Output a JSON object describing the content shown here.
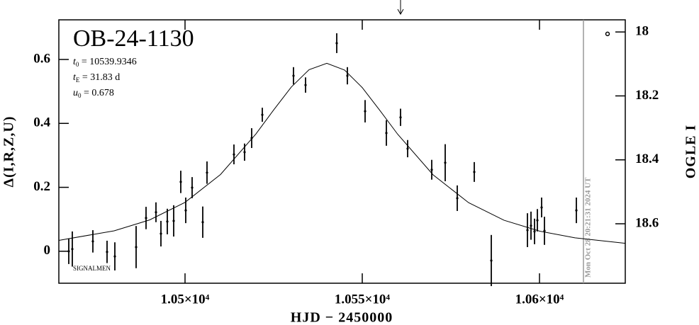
{
  "chart_data": {
    "type": "errorbar",
    "title": "OB-24-1130",
    "params": [
      {
        "symbol": "t",
        "sub": "0",
        "text": " = 10539.9346"
      },
      {
        "symbol": "t",
        "sub": "E",
        "text": " = 31.83 d"
      },
      {
        "symbol": "u",
        "sub": "0",
        "text": " = 0.678"
      }
    ],
    "footnote": "SIGNALMEN",
    "xlabel": "HJD − 2450000",
    "ylabel": "Δ(I,R,Z,U)",
    "y2label": "OGLE I",
    "color": "#000000",
    "x": [
      10467.2,
      10468.2,
      10474.0,
      10478.0,
      10480.2,
      10486.2,
      10489.0,
      10491.8,
      10493.2,
      10495.0,
      10496.8,
      10498.8,
      10500.2,
      10502.0,
      10505.0,
      10506.2,
      10513.8,
      10516.8,
      10518.8,
      10521.8,
      10530.6,
      10534.0,
      10542.8,
      10545.8,
      10550.8,
      10556.8,
      10560.8,
      10562.8,
      10569.6,
      10573.4,
      10576.8,
      10581.6,
      10586.4,
      10596.6,
      10597.6,
      10598.6,
      10599.4,
      10600.6,
      10601.4,
      10610.4
    ],
    "values": [
      0.0,
      0.007,
      0.031,
      -0.002,
      -0.016,
      0.013,
      0.104,
      0.122,
      0.055,
      0.093,
      0.095,
      0.217,
      0.128,
      0.199,
      0.091,
      0.246,
      0.303,
      0.31,
      0.354,
      0.427,
      0.549,
      0.52,
      0.651,
      0.549,
      0.438,
      0.37,
      0.419,
      0.321,
      0.255,
      0.277,
      0.166,
      0.248,
      -0.029,
      0.066,
      0.08,
      0.062,
      0.097,
      0.137,
      0.064,
      0.128
    ],
    "errors": [
      0.04,
      0.055,
      0.035,
      0.035,
      0.044,
      0.066,
      0.035,
      0.031,
      0.04,
      0.04,
      0.049,
      0.035,
      0.04,
      0.033,
      0.049,
      0.035,
      0.031,
      0.027,
      0.031,
      0.022,
      0.027,
      0.024,
      0.031,
      0.027,
      0.035,
      0.04,
      0.027,
      0.027,
      0.031,
      0.058,
      0.04,
      0.031,
      0.08,
      0.053,
      0.044,
      0.04,
      0.035,
      0.031,
      0.044,
      0.04
    ],
    "model": {
      "x": [
        10464.4,
        10480,
        10490,
        10500,
        10510,
        10520,
        10525,
        10530,
        10535,
        10540,
        10545,
        10550,
        10555,
        10560,
        10570,
        10580,
        10590,
        10600,
        10610,
        10624.2
      ],
      "values": [
        0.034,
        0.064,
        0.098,
        0.153,
        0.24,
        0.367,
        0.442,
        0.514,
        0.568,
        0.588,
        0.567,
        0.512,
        0.44,
        0.366,
        0.239,
        0.152,
        0.097,
        0.063,
        0.042,
        0.025
      ]
    },
    "outlier": {
      "x": 10619.2,
      "value": 0.68
    },
    "now_line": {
      "x": 10612.4,
      "label": "Mon Oct 28 20:21:31 2024 UT",
      "color": "#999999"
    },
    "arrow_x": 10560.8,
    "xlim": [
      10464.4,
      10624.2
    ],
    "ylim": [
      -0.1,
      0.724
    ],
    "y2lim": [
      17.962,
      18.786
    ],
    "y2_inverted": true,
    "xticks": [
      {
        "value": 10500,
        "label": "1.05×10⁴"
      },
      {
        "value": 10550,
        "label": "1.055×10⁴"
      },
      {
        "value": 10600,
        "label": "1.06×10⁴"
      }
    ],
    "yticks": [
      0,
      0.2,
      0.4,
      0.6
    ],
    "y2ticks": [
      18,
      18.2,
      18.4,
      18.6
    ]
  }
}
